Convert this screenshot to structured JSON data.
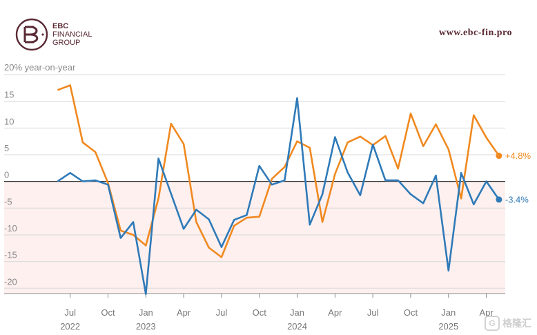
{
  "header": {
    "logo_line1": "EBC",
    "logo_line2": "FINANCIAL",
    "logo_line3": "GROUP",
    "website": "www.ebc-fin.pro"
  },
  "watermark": {
    "text": "格隆汇",
    "icon": "g-badge-icon"
  },
  "colors": {
    "orange": "#f0891f",
    "blue": "#2f7ab8",
    "negative_band": "#fdf0ef",
    "grid": "#d9d9d9",
    "zero": "#333333",
    "brand": "#5a2a35"
  },
  "chart_data": {
    "type": "line",
    "unit_label": "20% year-on-year",
    "ylim": [
      -21,
      20
    ],
    "y_ticks": [
      {
        "value": 15,
        "label": "15"
      },
      {
        "value": 10,
        "label": "10"
      },
      {
        "value": 5,
        "label": "5"
      },
      {
        "value": 0,
        "label": "0"
      },
      {
        "value": -5,
        "label": "-5"
      },
      {
        "value": -10,
        "label": "-10"
      },
      {
        "value": -15,
        "label": "-15"
      },
      {
        "value": -20,
        "label": "-20"
      }
    ],
    "x_range": [
      -1.5,
      35.5
    ],
    "x_ticks": [
      {
        "index": 1,
        "label": "Jul",
        "year": "2022"
      },
      {
        "index": 4,
        "label": "Oct",
        "year": ""
      },
      {
        "index": 7,
        "label": "Jan",
        "year": "2023"
      },
      {
        "index": 10,
        "label": "Apr",
        "year": ""
      },
      {
        "index": 13,
        "label": "Jul",
        "year": ""
      },
      {
        "index": 16,
        "label": "Oct",
        "year": ""
      },
      {
        "index": 19,
        "label": "Jan",
        "year": "2024"
      },
      {
        "index": 22,
        "label": "Apr",
        "year": ""
      },
      {
        "index": 25,
        "label": "Jul",
        "year": ""
      },
      {
        "index": 28,
        "label": "Oct",
        "year": ""
      },
      {
        "index": 31,
        "label": "Jan",
        "year": "2025"
      },
      {
        "index": 34,
        "label": "Apr",
        "year": ""
      }
    ],
    "series": [
      {
        "color": "#f0891f",
        "end_label": "+4.8%",
        "values": [
          17.1,
          18.0,
          7.3,
          5.5,
          -0.3,
          -9.2,
          -10.0,
          -12.0,
          -3.2,
          10.8,
          7.0,
          -7.6,
          -12.4,
          -14.2,
          -8.3,
          -6.8,
          -6.6,
          0.5,
          2.7,
          7.5,
          6.3,
          -7.6,
          1.4,
          7.3,
          8.4,
          6.8,
          8.5,
          2.4,
          12.7,
          6.6,
          10.7,
          6.0,
          -3.2,
          12.4,
          8.2,
          4.8
        ]
      },
      {
        "color": "#2f7ab8",
        "end_label": "-3.4%",
        "values": [
          0.0,
          1.6,
          0.0,
          0.2,
          -0.6,
          -10.6,
          -7.6,
          -21.1,
          4.3,
          -2.3,
          -8.9,
          -5.3,
          -7.1,
          -12.3,
          -7.2,
          -6.3,
          2.9,
          -0.6,
          0.2,
          15.6,
          -8.1,
          -2.4,
          8.3,
          1.7,
          -2.6,
          6.9,
          0.2,
          0.2,
          -2.4,
          -4.1,
          1.1,
          -16.7,
          1.6,
          -4.3,
          0.0,
          -3.4
        ]
      }
    ],
    "negative_region_shaded": true,
    "grid": true
  }
}
